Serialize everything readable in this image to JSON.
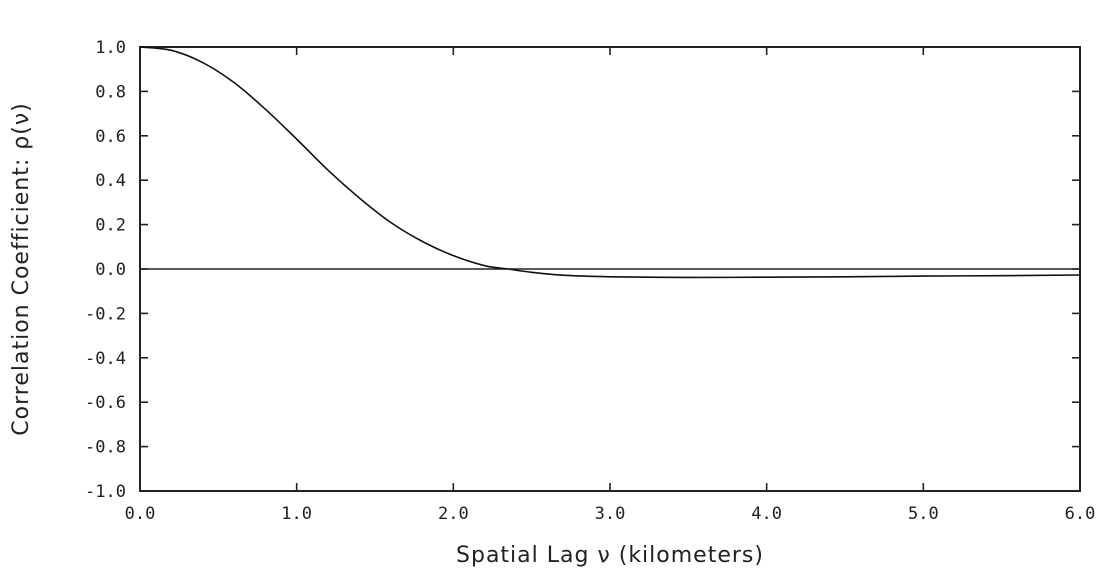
{
  "chart_data": {
    "type": "line",
    "xlabel": "Spatial Lag ν (kilometers)",
    "ylabel": "Correlation Coefficient: ρ(ν)",
    "xlim": [
      0,
      6
    ],
    "ylim": [
      -1,
      1
    ],
    "x_ticks": [
      "0.0",
      "1.0",
      "2.0",
      "3.0",
      "4.0",
      "5.0",
      "6.0"
    ],
    "y_ticks": [
      "1.0",
      "0.8",
      "0.6",
      "0.4",
      "0.2",
      "0.0",
      "-0.2",
      "-0.4",
      "-0.6",
      "-0.8",
      "-1.0"
    ],
    "grid": false,
    "reference_lines": [
      {
        "axis": "y",
        "value": 0
      }
    ],
    "series": [
      {
        "x": [
          0.0,
          0.2,
          0.4,
          0.6,
          0.8,
          1.0,
          1.2,
          1.4,
          1.6,
          1.8,
          2.0,
          2.2,
          2.35,
          2.5,
          2.7,
          3.0,
          3.5,
          4.0,
          4.5,
          5.0,
          5.5,
          6.0
        ],
        "values": [
          1.0,
          0.985,
          0.93,
          0.84,
          0.72,
          0.585,
          0.445,
          0.32,
          0.21,
          0.125,
          0.06,
          0.015,
          0.0,
          -0.015,
          -0.028,
          -0.035,
          -0.038,
          -0.037,
          -0.035,
          -0.032,
          -0.03,
          -0.027
        ]
      }
    ]
  }
}
